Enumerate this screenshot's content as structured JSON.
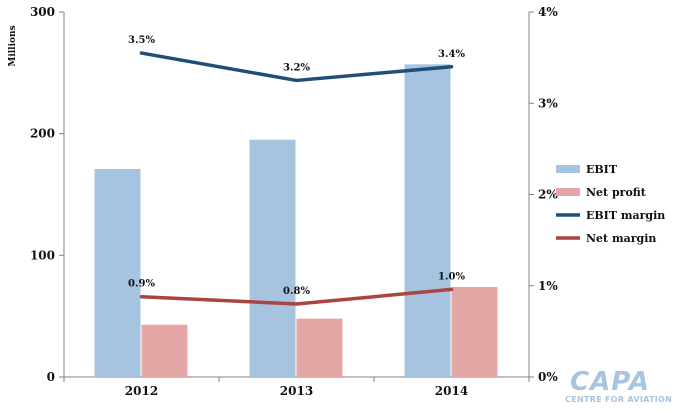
{
  "chart_data": {
    "type": "bar",
    "title": "",
    "y_unit_label": "Millions",
    "categories": [
      "2012",
      "2013",
      "2014"
    ],
    "ylim": [
      0,
      300
    ],
    "yticks": [
      0,
      100,
      200,
      300
    ],
    "y2lim": [
      0,
      4
    ],
    "y2ticks": [
      "0%",
      "1%",
      "2%",
      "3%",
      "4%"
    ],
    "grid": false,
    "legend_position": "right",
    "series": [
      {
        "name": "EBIT",
        "kind": "bar",
        "axis": "left",
        "color": "#a6c3df",
        "values": [
          171,
          195,
          257
        ]
      },
      {
        "name": "Net profit",
        "kind": "bar",
        "axis": "left",
        "color": "#e4a7a6",
        "values": [
          43,
          48,
          74
        ]
      },
      {
        "name": "EBIT margin",
        "kind": "line",
        "axis": "right",
        "color": "#1f4e79",
        "values": [
          3.55,
          3.25,
          3.4
        ],
        "labels": [
          "3.5%",
          "3.2%",
          "3.4%"
        ]
      },
      {
        "name": "Net margin",
        "kind": "line",
        "axis": "right",
        "color": "#a94442",
        "values": [
          0.88,
          0.8,
          0.96
        ],
        "labels": [
          "0.9%",
          "0.8%",
          "1.0%"
        ]
      }
    ]
  },
  "logo": {
    "text": "CAPA",
    "subtext": "CENTRE FOR AVIATION",
    "color": "#a9c4de"
  }
}
